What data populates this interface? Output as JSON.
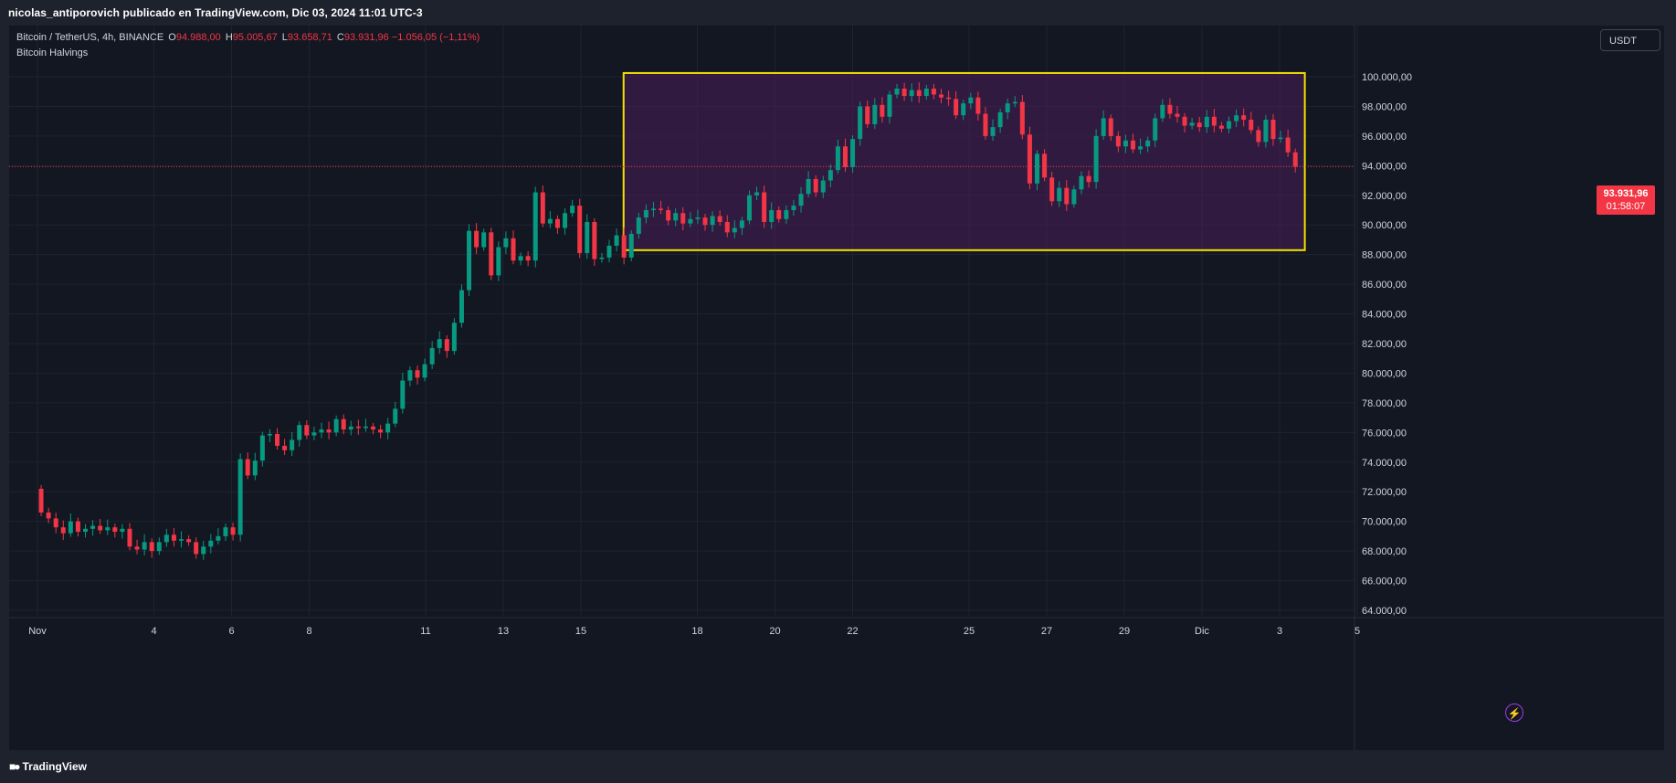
{
  "header": {
    "publish_line": "nicolas_antiporovich publicado en TradingView.com, Dic 03, 2024 11:01 UTC-3"
  },
  "legend": {
    "symbol": "Bitcoin / TetherUS, 4h, BINANCE",
    "o_label": "O",
    "o_value": "94.988,00",
    "h_label": "H",
    "h_value": "95.005,67",
    "l_label": "L",
    "l_value": "93.658,71",
    "c_label": "C",
    "c_value": "93.931,96",
    "change": "−1.056,05 (−1,11%)",
    "indicator": "Bitcoin Halvings"
  },
  "currency_button": "USDT",
  "last_price": {
    "price": "93.931,96",
    "countdown": "01:58:07"
  },
  "footer": {
    "brand": "TradingView",
    "logo_icon": "tradingview-logo-icon"
  },
  "icons": {
    "alert": "lightning-icon"
  },
  "colors": {
    "up": "#089981",
    "down": "#f23645",
    "box_border": "#f5e000",
    "box_fill": "#4a1e5a",
    "background": "#131722"
  },
  "chart_data": {
    "type": "candlestick",
    "interval": "4h",
    "ylim": [
      63000,
      101500
    ],
    "y_ticks": [
      64000,
      66000,
      68000,
      70000,
      72000,
      74000,
      76000,
      78000,
      80000,
      82000,
      84000,
      86000,
      88000,
      90000,
      92000,
      94000,
      96000,
      98000,
      100000
    ],
    "y_tick_labels": [
      "64.000,00",
      "66.000,00",
      "68.000,00",
      "70.000,00",
      "72.000,00",
      "74.000,00",
      "76.000,00",
      "78.000,00",
      "80.000,00",
      "82.000,00",
      "84.000,00",
      "86.000,00",
      "88.000,00",
      "90.000,00",
      "92.000,00",
      "94.000,00",
      "96.000,00",
      "98.000,00",
      "100.000,00"
    ],
    "x_ticks": [
      {
        "label": "Nov",
        "day": 1
      },
      {
        "label": "4",
        "day": 4
      },
      {
        "label": "6",
        "day": 6
      },
      {
        "label": "8",
        "day": 8
      },
      {
        "label": "11",
        "day": 11
      },
      {
        "label": "13",
        "day": 13
      },
      {
        "label": "15",
        "day": 15
      },
      {
        "label": "18",
        "day": 18
      },
      {
        "label": "20",
        "day": 20
      },
      {
        "label": "22",
        "day": 22
      },
      {
        "label": "25",
        "day": 25
      },
      {
        "label": "27",
        "day": 27
      },
      {
        "label": "29",
        "day": 29
      },
      {
        "label": "Dic",
        "day": 31
      },
      {
        "label": "3",
        "day": 33
      },
      {
        "label": "5",
        "day": 35
      }
    ],
    "last_price": 93931.96,
    "range_box": {
      "day_start": 16.1,
      "day_end": 33.65,
      "price_low": 88300,
      "price_high": 100250
    },
    "candle_series": [
      [
        72200,
        70600
      ],
      [
        70600,
        70200
      ],
      [
        70200,
        69600
      ],
      [
        69600,
        69200
      ],
      [
        69200,
        70000
      ],
      [
        70000,
        69300
      ],
      [
        69300,
        69500
      ],
      [
        69500,
        69700
      ],
      [
        69700,
        69400
      ],
      [
        69400,
        69600
      ],
      [
        69600,
        69300
      ],
      [
        69300,
        69500
      ],
      [
        69500,
        68300
      ],
      [
        68300,
        68100
      ],
      [
        68100,
        68600
      ],
      [
        68600,
        68000
      ],
      [
        68000,
        68600
      ],
      [
        68600,
        69100
      ],
      [
        69100,
        68700
      ],
      [
        68700,
        68800
      ],
      [
        68800,
        68600
      ],
      [
        68600,
        67800
      ],
      [
        67800,
        68300
      ],
      [
        68300,
        68700
      ],
      [
        68700,
        69000
      ],
      [
        69000,
        69600
      ],
      [
        69600,
        69100
      ],
      [
        69100,
        74200
      ],
      [
        74200,
        73100
      ],
      [
        73100,
        74100
      ],
      [
        74100,
        75800
      ],
      [
        75800,
        75900
      ],
      [
        75900,
        75100
      ],
      [
        75100,
        74800
      ],
      [
        74800,
        75500
      ],
      [
        75500,
        76500
      ],
      [
        76500,
        75800
      ],
      [
        75800,
        76000
      ],
      [
        76000,
        76200
      ],
      [
        76200,
        76000
      ],
      [
        76000,
        76900
      ],
      [
        76900,
        76200
      ],
      [
        76200,
        76400
      ],
      [
        76400,
        76300
      ],
      [
        76300,
        76400
      ],
      [
        76400,
        76200
      ],
      [
        76200,
        76000
      ],
      [
        76000,
        76600
      ],
      [
        76600,
        77600
      ],
      [
        77600,
        79500
      ],
      [
        79500,
        80200
      ],
      [
        80200,
        79700
      ],
      [
        79700,
        80600
      ],
      [
        80600,
        81700
      ],
      [
        81700,
        82300
      ],
      [
        82300,
        81500
      ],
      [
        81500,
        83400
      ],
      [
        83400,
        85600
      ],
      [
        85600,
        89600
      ],
      [
        89600,
        88500
      ],
      [
        88500,
        89500
      ],
      [
        89500,
        86600
      ],
      [
        86600,
        88500
      ],
      [
        88500,
        89100
      ],
      [
        89100,
        87600
      ],
      [
        87600,
        87900
      ],
      [
        87900,
        87600
      ],
      [
        87600,
        92200
      ],
      [
        92200,
        90100
      ],
      [
        90100,
        90400
      ],
      [
        90400,
        89800
      ],
      [
        89800,
        90800
      ],
      [
        90800,
        91300
      ],
      [
        91300,
        88100
      ],
      [
        88100,
        90200
      ],
      [
        90200,
        87700
      ],
      [
        87700,
        87800
      ],
      [
        87800,
        88600
      ],
      [
        88600,
        89300
      ],
      [
        89300,
        87800
      ],
      [
        87800,
        89400
      ],
      [
        89400,
        90500
      ],
      [
        90500,
        91000
      ],
      [
        91000,
        91100
      ],
      [
        91100,
        91000
      ],
      [
        91000,
        90300
      ],
      [
        90300,
        90800
      ],
      [
        90800,
        90100
      ],
      [
        90100,
        90400
      ],
      [
        90400,
        90500
      ],
      [
        90500,
        90000
      ],
      [
        90000,
        90600
      ],
      [
        90600,
        90200
      ],
      [
        90200,
        89500
      ],
      [
        89500,
        89800
      ],
      [
        89800,
        90300
      ],
      [
        90300,
        92000
      ],
      [
        92000,
        92200
      ],
      [
        92200,
        90200
      ],
      [
        90200,
        91000
      ],
      [
        91000,
        90400
      ],
      [
        90400,
        91000
      ],
      [
        91000,
        91300
      ],
      [
        91300,
        92100
      ],
      [
        92100,
        93100
      ],
      [
        93100,
        92200
      ],
      [
        92200,
        93000
      ],
      [
        93000,
        93700
      ],
      [
        93700,
        95300
      ],
      [
        95300,
        93900
      ],
      [
        93900,
        95800
      ],
      [
        95800,
        98000
      ],
      [
        98000,
        96800
      ],
      [
        96800,
        98100
      ],
      [
        98100,
        97300
      ],
      [
        97300,
        98800
      ],
      [
        98800,
        99200
      ],
      [
        99200,
        98700
      ],
      [
        98700,
        99100
      ],
      [
        99100,
        98700
      ],
      [
        98700,
        99200
      ],
      [
        99200,
        98800
      ],
      [
        98800,
        98600
      ],
      [
        98600,
        98500
      ],
      [
        98500,
        97400
      ],
      [
        97400,
        98200
      ],
      [
        98200,
        98600
      ],
      [
        98600,
        97500
      ],
      [
        97500,
        96000
      ],
      [
        96000,
        96600
      ],
      [
        96600,
        97600
      ],
      [
        97600,
        98200
      ],
      [
        98200,
        98300
      ],
      [
        98300,
        96100
      ],
      [
        96100,
        92800
      ],
      [
        92800,
        94800
      ],
      [
        94800,
        93200
      ],
      [
        93200,
        91600
      ],
      [
        91600,
        92500
      ],
      [
        92500,
        91400
      ],
      [
        91400,
        92400
      ],
      [
        92400,
        93300
      ],
      [
        93300,
        92900
      ],
      [
        92900,
        96000
      ],
      [
        96000,
        97200
      ],
      [
        97200,
        96000
      ],
      [
        96000,
        95300
      ],
      [
        95300,
        95700
      ],
      [
        95700,
        95100
      ],
      [
        95100,
        95300
      ],
      [
        95300,
        95700
      ],
      [
        95700,
        97200
      ],
      [
        97200,
        98100
      ],
      [
        98100,
        97500
      ],
      [
        97500,
        97300
      ],
      [
        97300,
        96700
      ],
      [
        96700,
        96900
      ],
      [
        96900,
        96600
      ],
      [
        96600,
        97300
      ],
      [
        97300,
        96700
      ],
      [
        96700,
        96500
      ],
      [
        96500,
        97000
      ],
      [
        97000,
        97400
      ],
      [
        97400,
        97100
      ],
      [
        97100,
        96400
      ],
      [
        96400,
        95600
      ],
      [
        95600,
        97100
      ],
      [
        97100,
        95800
      ],
      [
        95800,
        95900
      ],
      [
        95900,
        94900
      ],
      [
        94900,
        93932
      ]
    ]
  }
}
